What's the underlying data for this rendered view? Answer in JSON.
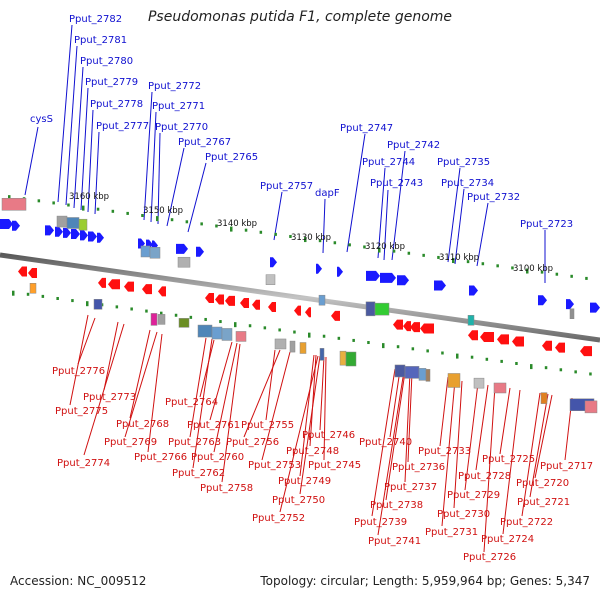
{
  "title": "Pseudomonas putida F1, complete genome",
  "footer": {
    "accession": "Accession: NC_009512",
    "summary": "Topology: circular; Length: 5,959,964 bp; Genes: 5,347"
  },
  "colors": {
    "forward_gene": "#1a1aff",
    "reverse_gene": "#ff1010",
    "forward_label": "#1010d0",
    "reverse_label": "#d01010",
    "backbone": "#8c8c8c",
    "tick": "#2a8a2a"
  },
  "scale_labels": [
    "3160 kbp",
    "3150 kbp",
    "3140 kbp",
    "3130 kbp",
    "3120 kbp",
    "3110 kbp",
    "3100 kbp"
  ],
  "top_labels": [
    "Pput_2782",
    "Pput_2781",
    "Pput_2780",
    "Pput_2779",
    "Pput_2778",
    "Pput_2777",
    "cysS",
    "Pput_2772",
    "Pput_2771",
    "Pput_2770",
    "Pput_2767",
    "Pput_2765",
    "Pput_2757",
    "dapF",
    "Pput_2747",
    "Pput_2742",
    "Pput_2744",
    "Pput_2743",
    "Pput_2735",
    "Pput_2734",
    "Pput_2732",
    "Pput_2723"
  ],
  "bottom_labels": [
    "Pput_2776",
    "Pput_2773",
    "Pput_2775",
    "Pput_2774",
    "Pput_2768",
    "Pput_2769",
    "Pput_2766",
    "Pput_2764",
    "Pput_2763",
    "Pput_2762",
    "Pput_2761",
    "Pput_2760",
    "Pput_2758",
    "Pput_2755",
    "Pput_2756",
    "Pput_2753",
    "Pput_2752",
    "Pput_2750",
    "Pput_2749",
    "Pput_2748",
    "Pput_2746",
    "Pput_2745",
    "Pput_2740",
    "Pput_2741",
    "Pput_2739",
    "Pput_2738",
    "Pput_2737",
    "Pput_2736",
    "Pput_2733",
    "Pput_2731",
    "Pput_2730",
    "Pput_2729",
    "Pput_2728",
    "Pput_2726",
    "Pput_2725",
    "Pput_2724",
    "Pput_2722",
    "Pput_2721",
    "Pput_2720",
    "Pput_2717"
  ]
}
